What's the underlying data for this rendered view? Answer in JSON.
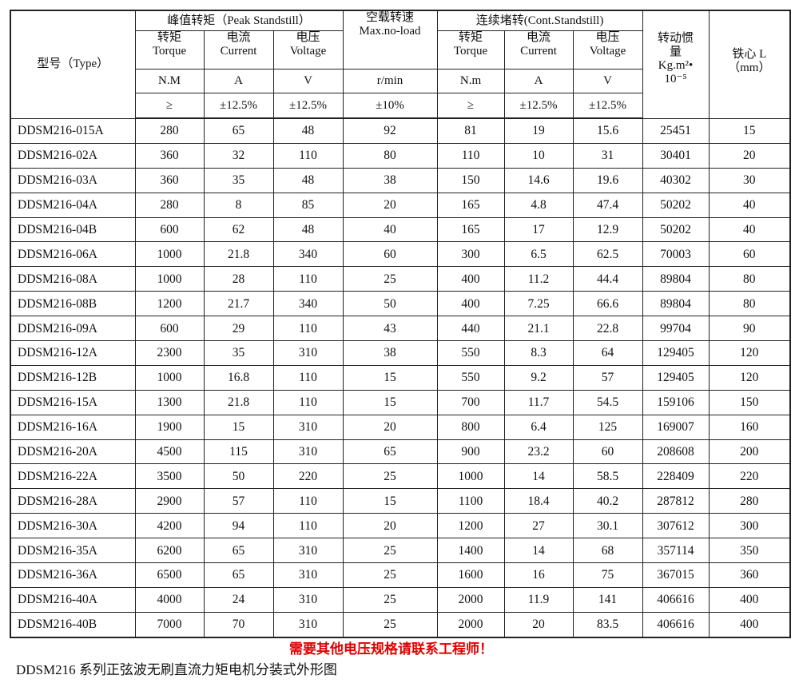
{
  "header": {
    "type": "型号（Type）",
    "peak_group": "峰值转矩（Peak Standstill）",
    "noload_group": "空载转速",
    "noload_en": "Max.no-load",
    "cont_group": "连续堵转(Cont.Standstill)",
    "inertia": "转动惯量",
    "inertia_unit": "Kg.m²•",
    "inertia_scale": "10⁻⁵",
    "core": "铁心 L",
    "core_unit": "（mm）",
    "peak_cols": [
      {
        "cn": "转矩",
        "en": "Torque",
        "unit": "N.M",
        "tol": "≥"
      },
      {
        "cn": "电流",
        "en": "Current",
        "unit": "A",
        "tol": "±12.5%"
      },
      {
        "cn": "电压",
        "en": "Voltage",
        "unit": "V",
        "tol": "±12.5%"
      }
    ],
    "noload_unit": "r/min",
    "noload_tol": "±10%",
    "cont_cols": [
      {
        "cn": "转矩",
        "en": "Torque",
        "unit": "N.m",
        "tol": "≥"
      },
      {
        "cn": "电流",
        "en": "Current",
        "unit": "A",
        "tol": "±12.5%"
      },
      {
        "cn": "电压",
        "en": "Voltage",
        "unit": "V",
        "tol": "±12.5%"
      }
    ]
  },
  "rows": [
    [
      "DDSM216-015A",
      "280",
      "65",
      "48",
      "92",
      "81",
      "19",
      "15.6",
      "25451",
      "15"
    ],
    [
      "DDSM216-02A",
      "360",
      "32",
      "110",
      "80",
      "110",
      "10",
      "31",
      "30401",
      "20"
    ],
    [
      "DDSM216-03A",
      "360",
      "35",
      "48",
      "38",
      "150",
      "14.6",
      "19.6",
      "40302",
      "30"
    ],
    [
      "DDSM216-04A",
      "280",
      "8",
      "85",
      "20",
      "165",
      "4.8",
      "47.4",
      "50202",
      "40"
    ],
    [
      "DDSM216-04B",
      "600",
      "62",
      "48",
      "40",
      "165",
      "17",
      "12.9",
      "50202",
      "40"
    ],
    [
      "DDSM216-06A",
      "1000",
      "21.8",
      "340",
      "60",
      "300",
      "6.5",
      "62.5",
      "70003",
      "60"
    ],
    [
      "DDSM216-08A",
      "1000",
      "28",
      "110",
      "25",
      "400",
      "11.2",
      "44.4",
      "89804",
      "80"
    ],
    [
      "DDSM216-08B",
      "1200",
      "21.7",
      "340",
      "50",
      "400",
      "7.25",
      "66.6",
      "89804",
      "80"
    ],
    [
      "DDSM216-09A",
      "600",
      "29",
      "110",
      "43",
      "440",
      "21.1",
      "22.8",
      "99704",
      "90"
    ],
    [
      "DDSM216-12A",
      "2300",
      "35",
      "310",
      "38",
      "550",
      "8.3",
      "64",
      "129405",
      "120"
    ],
    [
      "DDSM216-12B",
      "1000",
      "16.8",
      "110",
      "15",
      "550",
      "9.2",
      "57",
      "129405",
      "120"
    ],
    [
      "DDSM216-15A",
      "1300",
      "21.8",
      "110",
      "15",
      "700",
      "11.7",
      "54.5",
      "159106",
      "150"
    ],
    [
      "DDSM216-16A",
      "1900",
      "15",
      "310",
      "20",
      "800",
      "6.4",
      "125",
      "169007",
      "160"
    ],
    [
      "DDSM216-20A",
      "4500",
      "115",
      "310",
      "65",
      "900",
      "23.2",
      "60",
      "208608",
      "200"
    ],
    [
      "DDSM216-22A",
      "3500",
      "50",
      "220",
      "25",
      "1000",
      "14",
      "58.5",
      "228409",
      "220"
    ],
    [
      "DDSM216-28A",
      "2900",
      "57",
      "110",
      "15",
      "1100",
      "18.4",
      "40.2",
      "287812",
      "280"
    ],
    [
      "DDSM216-30A",
      "4200",
      "94",
      "110",
      "20",
      "1200",
      "27",
      "30.1",
      "307612",
      "300"
    ],
    [
      "DDSM216-35A",
      "6200",
      "65",
      "310",
      "25",
      "1400",
      "14",
      "68",
      "357114",
      "350"
    ],
    [
      "DDSM216-36A",
      "6500",
      "65",
      "310",
      "25",
      "1600",
      "16",
      "75",
      "367015",
      "360"
    ],
    [
      "DDSM216-40A",
      "4000",
      "24",
      "310",
      "25",
      "2000",
      "11.9",
      "141",
      "406616",
      "400"
    ],
    [
      "DDSM216-40B",
      "7000",
      "70",
      "310",
      "25",
      "2000",
      "20",
      "83.5",
      "406616",
      "400"
    ]
  ],
  "note": "需要其他电压规格请联系工程师！",
  "caption": "DDSM216 系列正弦波无刷直流力矩电机分装式外形图",
  "colors": {
    "note": "#e00000"
  }
}
